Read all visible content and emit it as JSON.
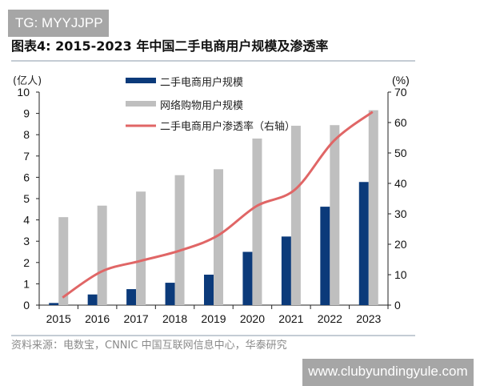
{
  "watermarks": {
    "top": "TG: MYYJJPP",
    "bottom": "www.clubyundingyule.com"
  },
  "title": "图表4:  2015-2023 年中国二手电商用户规模及渗透率",
  "source": "资料来源：电数宝，CNNIC 中国互联网信息中心，华泰研究",
  "chart_data": {
    "type": "bar+line",
    "categories": [
      "2015",
      "2016",
      "2017",
      "2018",
      "2019",
      "2020",
      "2021",
      "2022",
      "2023"
    ],
    "left_axis": {
      "unit_label": "(亿人)",
      "range": [
        0,
        10
      ],
      "ticks": [
        "0",
        "1",
        "2",
        "3",
        "4",
        "5",
        "6",
        "7",
        "8",
        "9",
        "10"
      ]
    },
    "right_axis": {
      "unit_label": "(%)",
      "range": [
        0,
        70
      ],
      "ticks": [
        "0",
        "10",
        "20",
        "30",
        "40",
        "50",
        "60",
        "70"
      ]
    },
    "series": [
      {
        "name": "二手电商用户规模",
        "type": "bar",
        "axis": "left",
        "color": "#0b3a7a",
        "values": [
          0.1,
          0.5,
          0.75,
          1.05,
          1.43,
          2.5,
          3.22,
          4.62,
          5.78
        ]
      },
      {
        "name": "网络购物用户规模",
        "type": "bar",
        "axis": "left",
        "color": "#bfbfbf",
        "values": [
          4.13,
          4.67,
          5.33,
          6.1,
          6.38,
          7.82,
          8.42,
          8.45,
          9.15
        ]
      },
      {
        "name": "二手电商用户渗透率（右轴）",
        "type": "line",
        "axis": "right",
        "color": "#e06666",
        "values": [
          2.5,
          11,
          14.5,
          17.8,
          22.8,
          32.5,
          38,
          54,
          63.5
        ]
      }
    ],
    "grid": false,
    "legend": "top-center"
  }
}
